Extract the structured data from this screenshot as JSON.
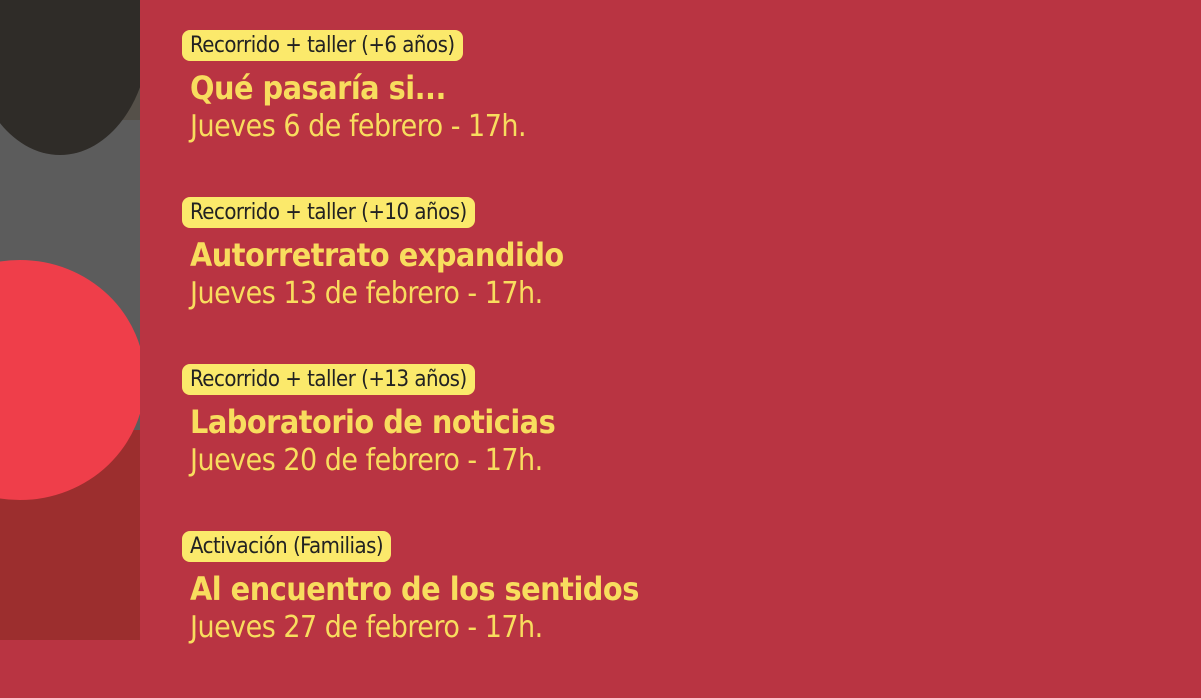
{
  "events": [
    {
      "tag": "Recorrido + taller (+6 años)",
      "title": "Qué pasaría si...",
      "date": "Jueves 6 de febrero - 17h."
    },
    {
      "tag": "Recorrido + taller (+10 años)",
      "title": "Autorretrato expandido",
      "date": "Jueves 13 de febrero - 17h."
    },
    {
      "tag": "Recorrido + taller (+13 años)",
      "title": "Laboratorio de noticias",
      "date": "Jueves 20 de febrero - 17h."
    },
    {
      "tag": "Activación (Familias)",
      "title": "Al encuentro de los sentidos",
      "date": "Jueves 27 de febrero - 17h."
    }
  ]
}
